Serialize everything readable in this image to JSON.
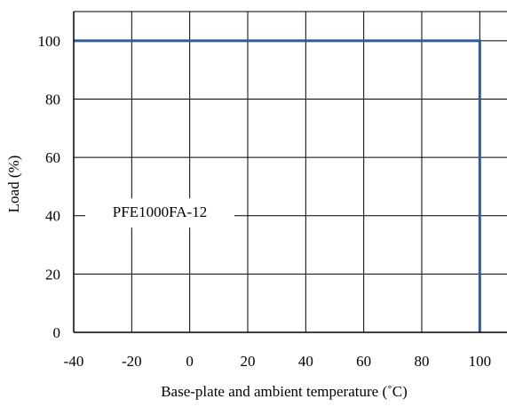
{
  "chart_data": {
    "type": "line",
    "title": "",
    "xlabel": "Base-plate and ambient temperature (˚C)",
    "ylabel": "Load (%)",
    "xlim": [
      -40,
      110
    ],
    "ylim": [
      0,
      110
    ],
    "x_ticks": [
      -40,
      -20,
      0,
      20,
      40,
      60,
      80,
      100
    ],
    "x_tick_labels": [
      "-40",
      "-20",
      "0",
      "20",
      "40",
      "60",
      "80",
      "100"
    ],
    "y_ticks": [
      0,
      20,
      40,
      60,
      80,
      100
    ],
    "y_tick_labels": [
      "0",
      "20",
      "40",
      "60",
      "80",
      "100"
    ],
    "grid": true,
    "series": [
      {
        "name": "PFE1000FA-12",
        "x": [
          -40,
          100,
          100
        ],
        "y": [
          100,
          100,
          0
        ],
        "color": "#2e5d9a"
      }
    ],
    "annotations": [
      {
        "text": "PFE1000FA-12",
        "x": -10,
        "y": 42
      }
    ]
  }
}
